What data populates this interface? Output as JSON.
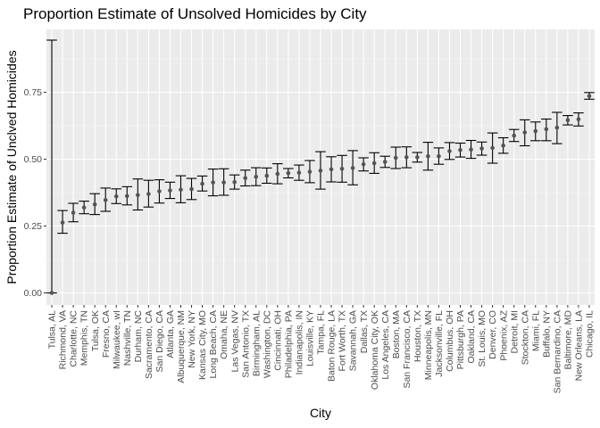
{
  "chart_data": {
    "type": "scatter",
    "title": "Proportion Estimate of Unsolved Homicides by City",
    "xlabel": "City",
    "ylabel": "Proportion Estimate of Unclved Homicides",
    "ylim": [
      -0.045,
      0.985
    ],
    "yticks": [
      0.0,
      0.25,
      0.5,
      0.75
    ],
    "ytick_labels": [
      "0.00",
      "0.25",
      "0.50",
      "0.75"
    ],
    "grid": true,
    "legend": "none",
    "colors": {
      "panel": "#ebebeb",
      "grid_major": "#ffffff",
      "grid_minor": "#f5f5f5",
      "point": "#545454",
      "errorbar": "#000000",
      "tick": "#333333"
    },
    "categories": [
      "Tulsa, AL",
      "Richmond, VA",
      "Charlotte, NC",
      "Memphis, TN",
      "Tulsa, OK",
      "Fresno, CA",
      "Milwaukee, wI",
      "Nashville, TN",
      "Durham, NC",
      "Sacramento, CA",
      "San Diego, CA",
      "Atlanta, GA",
      "Albuquerque, NM",
      "New York, NY",
      "Kansas City, MO",
      "Long Beach, CA",
      "Omaha, NE",
      "Las Vegas, NV",
      "San Antonio, TX",
      "Birmingham, AL",
      "Washington, DC",
      "Cincinnati, OH",
      "Philadelphia, PA",
      "Indianapolis, IN",
      "Louisville, KY",
      "Tampa, FL",
      "Baton Rouge, LA",
      "Fort Worth, TX",
      "Savannah, GA",
      "Dallas, TX",
      "Oklahoma City, OK",
      "Los Angeles, CA",
      "Boston, MA",
      "San Francisco, CA",
      "Houston, TX",
      "Minneapolis, MN",
      "Jacksonville, FL",
      "Columbus, OH",
      "Pittsburgh, PA",
      "Oakland, CA",
      "St. Louis, MO",
      "Denver, CO",
      "Phoenix, AZ",
      "Detroit, MI",
      "Stockton, CA",
      "Miami, FL",
      "Buffalo, NY",
      "San Bernardino, CA",
      "Baltimore, MD",
      "New Orleans, LA",
      "Chicago, IL"
    ],
    "series": [
      {
        "estimate": [
          0.0,
          0.263,
          0.3,
          0.319,
          0.331,
          0.347,
          0.361,
          0.362,
          0.366,
          0.37,
          0.38,
          0.383,
          0.386,
          0.388,
          0.408,
          0.413,
          0.413,
          0.414,
          0.429,
          0.434,
          0.438,
          0.445,
          0.448,
          0.449,
          0.453,
          0.457,
          0.462,
          0.464,
          0.467,
          0.481,
          0.485,
          0.49,
          0.505,
          0.507,
          0.507,
          0.511,
          0.511,
          0.53,
          0.534,
          0.536,
          0.54,
          0.542,
          0.551,
          0.588,
          0.6,
          0.605,
          0.612,
          0.618,
          0.646,
          0.649,
          0.736
        ],
        "lower": [
          0.0,
          0.223,
          0.266,
          0.296,
          0.293,
          0.305,
          0.334,
          0.329,
          0.31,
          0.321,
          0.336,
          0.353,
          0.337,
          0.349,
          0.381,
          0.363,
          0.365,
          0.388,
          0.4,
          0.401,
          0.41,
          0.408,
          0.43,
          0.421,
          0.412,
          0.388,
          0.415,
          0.414,
          0.404,
          0.456,
          0.447,
          0.469,
          0.465,
          0.468,
          0.489,
          0.459,
          0.481,
          0.499,
          0.508,
          0.503,
          0.515,
          0.485,
          0.522,
          0.566,
          0.55,
          0.569,
          0.569,
          0.558,
          0.628,
          0.624,
          0.724
        ],
        "upper": [
          0.945,
          0.308,
          0.335,
          0.343,
          0.371,
          0.392,
          0.389,
          0.397,
          0.426,
          0.421,
          0.423,
          0.414,
          0.438,
          0.428,
          0.437,
          0.463,
          0.464,
          0.441,
          0.459,
          0.468,
          0.467,
          0.483,
          0.465,
          0.478,
          0.495,
          0.528,
          0.509,
          0.514,
          0.532,
          0.505,
          0.524,
          0.511,
          0.545,
          0.546,
          0.525,
          0.563,
          0.542,
          0.562,
          0.56,
          0.57,
          0.564,
          0.598,
          0.58,
          0.611,
          0.647,
          0.639,
          0.65,
          0.675,
          0.663,
          0.673,
          0.749
        ]
      }
    ]
  }
}
